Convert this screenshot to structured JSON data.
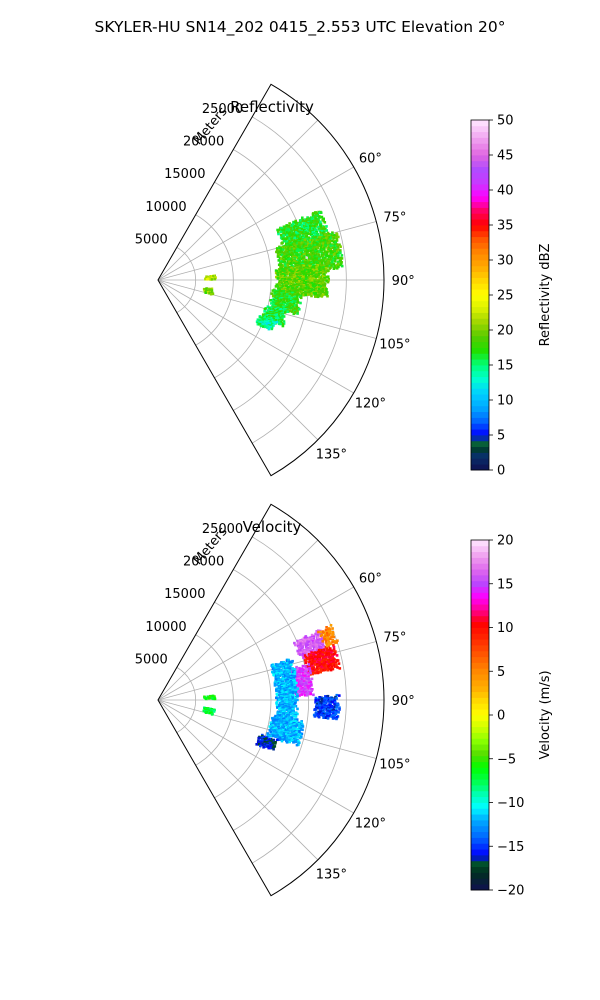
{
  "figure": {
    "title": "SKYLER-HU  SN14_202  0415_2.553 UTC Elevation 20°"
  },
  "chart_data": [
    {
      "type": "heatmap",
      "projection": "polar-sector",
      "title": "Reflectivity",
      "radial_axis_label": "Meters",
      "radial_ticks": [
        5000,
        10000,
        15000,
        20000,
        25000
      ],
      "radial_tick_labels": [
        "5000",
        "10000",
        "15000",
        "20000",
        "25000"
      ],
      "r_max": 30000,
      "angle_range_deg": [
        30,
        150
      ],
      "angle_ticks": [
        60,
        75,
        90,
        105,
        120,
        135
      ],
      "angle_tick_labels": [
        "60°",
        "75°",
        "90°",
        "105°",
        "120°",
        "135°"
      ],
      "grid": true,
      "colorbar": {
        "label": "Reflectivity dBZ",
        "min": 0,
        "max": 50,
        "ticks": [
          0,
          5,
          10,
          15,
          20,
          25,
          30,
          35,
          40,
          45,
          50
        ],
        "tick_labels": [
          "0",
          "5",
          "10",
          "15",
          "20",
          "25",
          "30",
          "35",
          "40",
          "45",
          "50"
        ],
        "colormap": "pyart_NWSRef"
      },
      "echo_regions": [
        {
          "az_range": [
            66,
            78
          ],
          "r_range": [
            17000,
            23500
          ],
          "value": 17
        },
        {
          "az_range": [
            74,
            86
          ],
          "r_range": [
            16000,
            24500
          ],
          "value": 18
        },
        {
          "az_range": [
            84,
            96
          ],
          "r_range": [
            15500,
            22500
          ],
          "value": 19
        },
        {
          "az_range": [
            94,
            104
          ],
          "r_range": [
            15000,
            19000
          ],
          "value": 17
        },
        {
          "az_range": [
            103,
            110
          ],
          "r_range": [
            14500,
            17500
          ],
          "value": 16
        },
        {
          "az_range": [
            109,
            114
          ],
          "r_range": [
            14000,
            16500
          ],
          "value": 14
        },
        {
          "az_range": [
            98,
            104
          ],
          "r_range": [
            6000,
            7500
          ],
          "value": 20
        },
        {
          "az_range": [
            84,
            88
          ],
          "r_range": [
            6000,
            7500
          ],
          "value": 22
        }
      ]
    },
    {
      "type": "heatmap",
      "projection": "polar-sector",
      "title": "Velocity",
      "radial_axis_label": "Meters",
      "radial_ticks": [
        5000,
        10000,
        15000,
        20000,
        25000
      ],
      "radial_tick_labels": [
        "5000",
        "10000",
        "15000",
        "20000",
        "25000"
      ],
      "r_max": 30000,
      "angle_range_deg": [
        30,
        150
      ],
      "angle_ticks": [
        60,
        75,
        90,
        105,
        120,
        135
      ],
      "angle_tick_labels": [
        "60°",
        "75°",
        "90°",
        "105°",
        "120°",
        "135°"
      ],
      "grid": true,
      "colorbar": {
        "label": "Velocity (m/s)",
        "min": -20,
        "max": 20,
        "ticks": [
          -20,
          -15,
          -10,
          -5,
          0,
          5,
          10,
          15,
          20
        ],
        "tick_labels": [
          "−20",
          "−15",
          "−10",
          "−5",
          "0",
          "5",
          "10",
          "15",
          "20"
        ],
        "colormap": "pyart_BuDRd18"
      },
      "echo_regions": [
        {
          "az_range": [
            66,
            74
          ],
          "r_range": [
            19500,
            23500
          ],
          "value": 16
        },
        {
          "az_range": [
            72,
            80
          ],
          "r_range": [
            20000,
            24500
          ],
          "value": 10
        },
        {
          "az_range": [
            66,
            72
          ],
          "r_range": [
            23000,
            25000
          ],
          "value": 5
        },
        {
          "az_range": [
            76,
            88
          ],
          "r_range": [
            17000,
            20500
          ],
          "value": 15
        },
        {
          "az_range": [
            88,
            96
          ],
          "r_range": [
            20500,
            24000
          ],
          "value": -15
        },
        {
          "az_range": [
            72,
            100
          ],
          "r_range": [
            15500,
            18500
          ],
          "value": -12
        },
        {
          "az_range": [
            98,
            108
          ],
          "r_range": [
            15000,
            19500
          ],
          "value": -12
        },
        {
          "az_range": [
            108,
            114
          ],
          "r_range": [
            14000,
            16500
          ],
          "value": -16
        },
        {
          "az_range": [
            98,
            104
          ],
          "r_range": [
            6000,
            7500
          ],
          "value": -7
        },
        {
          "az_range": [
            84,
            88
          ],
          "r_range": [
            6000,
            7500
          ],
          "value": -6
        }
      ]
    }
  ]
}
